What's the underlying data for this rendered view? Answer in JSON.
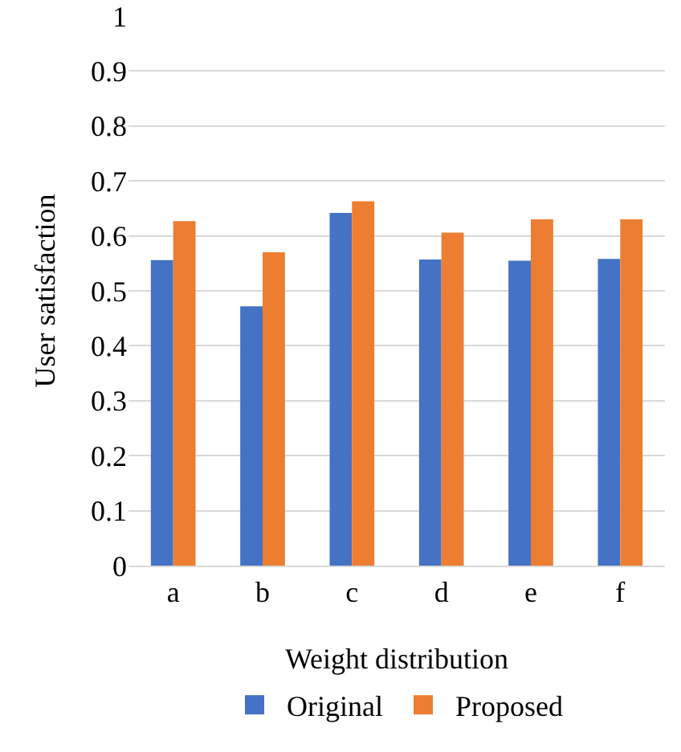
{
  "chart_data": {
    "type": "bar",
    "xlabel": "Weight distribution",
    "ylabel": "User satisfaction",
    "categories": [
      "a",
      "b",
      "c",
      "d",
      "e",
      "f"
    ],
    "series": [
      {
        "name": "Original",
        "color": "#4472c4",
        "values": [
          0.556,
          0.472,
          0.642,
          0.557,
          0.555,
          0.558
        ]
      },
      {
        "name": "Proposed",
        "color": "#ed7d31",
        "values": [
          0.627,
          0.57,
          0.663,
          0.606,
          0.63,
          0.63
        ]
      }
    ],
    "ylim": [
      0,
      1
    ],
    "yticks": [
      0,
      0.1,
      0.2,
      0.3,
      0.4,
      0.5,
      0.6,
      0.7,
      0.8,
      0.9,
      1
    ],
    "grid": "y",
    "legend": "bottom"
  }
}
